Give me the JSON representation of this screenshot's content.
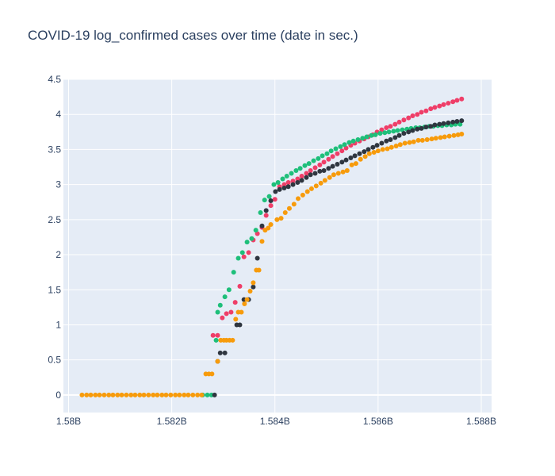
{
  "chart_data": {
    "type": "scatter",
    "title": "COVID-19 log_confirmed cases over time (date in sec.)",
    "xlabel": "",
    "ylabel": "",
    "xlim": [
      1579900000.0,
      1588200000.0
    ],
    "ylim": [
      -0.25,
      4.5
    ],
    "x_ticks": [
      1580000000.0,
      1582000000.0,
      1584000000.0,
      1586000000.0,
      1588000000.0
    ],
    "x_tick_labels": [
      "1.58B",
      "1.582B",
      "1.584B",
      "1.586B",
      "1.588B"
    ],
    "y_ticks": [
      0,
      0.5,
      1,
      1.5,
      2,
      2.5,
      3,
      3.5,
      4,
      4.5
    ],
    "y_tick_labels": [
      "0",
      "0.5",
      "1",
      "1.5",
      "2",
      "2.5",
      "3",
      "3.5",
      "4",
      "4.5"
    ],
    "grid": true,
    "legend": "none",
    "colors": {
      "plot_bg": "#e5ecf6",
      "grid": "#ffffff",
      "text": "#2a3f5f"
    },
    "series": [
      {
        "color": "#636efa",
        "x": [],
        "y": []
      },
      {
        "color": "#ef3e68",
        "x": [
          1582800000.0,
          1582890000.0,
          1582980000.0,
          1583060000.0,
          1583150000.0,
          1583230000.0,
          1583320000.0,
          1583400000.0,
          1583490000.0,
          1583580000.0,
          1583660000.0,
          1583750000.0,
          1583830000.0,
          1583920000.0,
          1584000000.0,
          1584090000.0,
          1584180000.0,
          1584260000.0,
          1584350000.0,
          1584440000.0,
          1584520000.0,
          1584610000.0,
          1584690000.0,
          1584780000.0,
          1584870000.0,
          1584950000.0,
          1585040000.0,
          1585120000.0,
          1585210000.0,
          1585300000.0,
          1585380000.0,
          1585470000.0,
          1585550000.0,
          1585640000.0,
          1585730000.0,
          1585810000.0,
          1585900000.0,
          1585980000.0,
          1586070000.0,
          1586160000.0,
          1586240000.0,
          1586330000.0,
          1586410000.0,
          1586500000.0,
          1586590000.0,
          1586670000.0,
          1586760000.0,
          1586840000.0,
          1586930000.0,
          1587020000.0,
          1587100000.0,
          1587190000.0,
          1587270000.0,
          1587360000.0,
          1587450000.0,
          1587530000.0,
          1587620000.0
        ],
        "y": [
          0.85,
          0.85,
          1.1,
          1.16,
          1.18,
          1.32,
          1.55,
          1.97,
          2.03,
          2.21,
          2.3,
          2.39,
          2.56,
          2.7,
          2.79,
          2.97,
          3.0,
          3.03,
          3.05,
          3.08,
          3.12,
          3.16,
          3.2,
          3.24,
          3.28,
          3.32,
          3.36,
          3.4,
          3.44,
          3.48,
          3.52,
          3.56,
          3.59,
          3.62,
          3.65,
          3.68,
          3.71,
          3.75,
          3.78,
          3.81,
          3.83,
          3.86,
          3.89,
          3.92,
          3.95,
          3.98,
          4.0,
          4.03,
          4.05,
          4.08,
          4.1,
          4.12,
          4.14,
          4.16,
          4.18,
          4.2,
          4.22
        ]
      },
      {
        "color": "#1ebf7a",
        "x": [
          1582600000.0,
          1582690000.0,
          1582770000.0,
          1582860000.0,
          1582890000.0,
          1582940000.0,
          1583030000.0,
          1583110000.0,
          1583200000.0,
          1583290000.0,
          1583370000.0,
          1583460000.0,
          1583550000.0,
          1583630000.0,
          1583720000.0,
          1583800000.0,
          1583890000.0,
          1583980000.0,
          1584060000.0,
          1584150000.0,
          1584230000.0,
          1584320000.0,
          1584410000.0,
          1584490000.0,
          1584580000.0,
          1584660000.0,
          1584750000.0,
          1584840000.0,
          1584920000.0,
          1585010000.0,
          1585090000.0,
          1585180000.0,
          1585270000.0,
          1585350000.0,
          1585440000.0,
          1585520000.0,
          1585610000.0,
          1585700000.0,
          1585780000.0,
          1585870000.0,
          1585950000.0,
          1586040000.0,
          1586130000.0,
          1586210000.0,
          1586300000.0,
          1586380000.0,
          1586470000.0,
          1586560000.0,
          1586640000.0,
          1586730000.0,
          1586810000.0,
          1586900000.0,
          1586990000.0,
          1587070000.0,
          1587160000.0,
          1587240000.0,
          1587330000.0,
          1587420000.0,
          1587500000.0,
          1587590000.0
        ],
        "y": [
          0.0,
          0.0,
          0.0,
          0.78,
          1.18,
          1.28,
          1.4,
          1.5,
          1.75,
          1.95,
          2.03,
          2.18,
          2.23,
          2.35,
          2.6,
          2.78,
          2.83,
          3.0,
          3.03,
          3.08,
          3.12,
          3.16,
          3.2,
          3.23,
          3.27,
          3.3,
          3.34,
          3.37,
          3.41,
          3.44,
          3.48,
          3.51,
          3.54,
          3.57,
          3.6,
          3.62,
          3.64,
          3.66,
          3.68,
          3.7,
          3.71,
          3.73,
          3.74,
          3.75,
          3.76,
          3.77,
          3.78,
          3.79,
          3.8,
          3.81,
          3.81,
          3.82,
          3.83,
          3.83,
          3.84,
          3.84,
          3.85,
          3.85,
          3.86,
          3.86
        ]
      },
      {
        "color": "#2f3640",
        "x": [
          1582830000.0,
          1582890000.0,
          1582940000.0,
          1583030000.0,
          1583260000.0,
          1583320000.0,
          1583400000.0,
          1583490000.0,
          1583580000.0,
          1583660000.0,
          1583750000.0,
          1583830000.0,
          1583920000.0,
          1584010000.0,
          1584090000.0,
          1584180000.0,
          1584260000.0,
          1584350000.0,
          1584440000.0,
          1584520000.0,
          1584610000.0,
          1584690000.0,
          1584780000.0,
          1584870000.0,
          1584950000.0,
          1585040000.0,
          1585120000.0,
          1585210000.0,
          1585300000.0,
          1585380000.0,
          1585470000.0,
          1585550000.0,
          1585640000.0,
          1585730000.0,
          1585810000.0,
          1585900000.0,
          1585980000.0,
          1586070000.0,
          1586160000.0,
          1586240000.0,
          1586330000.0,
          1586410000.0,
          1586500000.0,
          1586590000.0,
          1586670000.0,
          1586760000.0,
          1586840000.0,
          1586930000.0,
          1587020000.0,
          1587100000.0,
          1587190000.0,
          1587270000.0,
          1587360000.0,
          1587450000.0,
          1587530000.0,
          1587620000.0
        ],
        "y": [
          0.0,
          0.48,
          0.6,
          0.6,
          1.0,
          1.0,
          1.36,
          1.36,
          1.54,
          1.95,
          2.41,
          2.63,
          2.77,
          2.9,
          2.93,
          2.95,
          2.97,
          3.0,
          3.03,
          3.06,
          3.1,
          3.14,
          3.16,
          3.19,
          3.2,
          3.23,
          3.26,
          3.29,
          3.32,
          3.35,
          3.38,
          3.41,
          3.44,
          3.47,
          3.5,
          3.53,
          3.56,
          3.59,
          3.62,
          3.64,
          3.67,
          3.7,
          3.73,
          3.75,
          3.77,
          3.79,
          3.8,
          3.82,
          3.83,
          3.85,
          3.86,
          3.87,
          3.88,
          3.89,
          3.9,
          3.91
        ]
      },
      {
        "color": "#f79b0b",
        "x": [
          1580260000.0,
          1580350000.0,
          1580430000.0,
          1580520000.0,
          1580600000.0,
          1580690000.0,
          1580780000.0,
          1580860000.0,
          1580950000.0,
          1581030000.0,
          1581120000.0,
          1581210000.0,
          1581290000.0,
          1581380000.0,
          1581460000.0,
          1581550000.0,
          1581640000.0,
          1581720000.0,
          1581810000.0,
          1581890000.0,
          1581980000.0,
          1582070000.0,
          1582150000.0,
          1582240000.0,
          1582320000.0,
          1582410000.0,
          1582500000.0,
          1582580000.0,
          1582660000.0,
          1582720000.0,
          1582780000.0,
          1582890000.0,
          1582950000.0,
          1583010000.0,
          1583060000.0,
          1583120000.0,
          1583180000.0,
          1583240000.0,
          1583290000.0,
          1583350000.0,
          1583410000.0,
          1583460000.0,
          1583520000.0,
          1583580000.0,
          1583640000.0,
          1583690000.0,
          1583750000.0,
          1583810000.0,
          1583870000.0,
          1583920000.0,
          1584040000.0,
          1584120000.0,
          1584200000.0,
          1584280000.0,
          1584370000.0,
          1584450000.0,
          1584540000.0,
          1584630000.0,
          1584710000.0,
          1584800000.0,
          1584890000.0,
          1584970000.0,
          1585060000.0,
          1585140000.0,
          1585230000.0,
          1585320000.0,
          1585400000.0,
          1585490000.0,
          1585570000.0,
          1585660000.0,
          1585750000.0,
          1585830000.0,
          1585920000.0,
          1586000000.0,
          1586090000.0,
          1586180000.0,
          1586260000.0,
          1586350000.0,
          1586430000.0,
          1586520000.0,
          1586610000.0,
          1586690000.0,
          1586780000.0,
          1586860000.0,
          1586950000.0,
          1587040000.0,
          1587120000.0,
          1587210000.0,
          1587290000.0,
          1587380000.0,
          1587470000.0,
          1587550000.0,
          1587620000.0
        ],
        "y": [
          0,
          0,
          0,
          0,
          0,
          0,
          0,
          0,
          0,
          0,
          0,
          0,
          0,
          0,
          0,
          0,
          0,
          0,
          0,
          0,
          0,
          0,
          0,
          0,
          0,
          0,
          0,
          0,
          0.3,
          0.3,
          0.3,
          0.48,
          0.78,
          0.78,
          0.78,
          0.78,
          0.78,
          1.08,
          1.18,
          1.18,
          1.3,
          1.36,
          1.48,
          1.6,
          1.78,
          1.78,
          2.19,
          2.35,
          2.38,
          2.43,
          2.5,
          2.52,
          2.6,
          2.66,
          2.72,
          2.8,
          2.85,
          2.9,
          2.94,
          2.98,
          3.02,
          3.06,
          3.1,
          3.14,
          3.16,
          3.18,
          3.2,
          3.28,
          3.3,
          3.36,
          3.4,
          3.44,
          3.46,
          3.48,
          3.5,
          3.51,
          3.53,
          3.55,
          3.57,
          3.59,
          3.6,
          3.61,
          3.63,
          3.63,
          3.64,
          3.65,
          3.66,
          3.67,
          3.68,
          3.69,
          3.7,
          3.71,
          3.72
        ]
      }
    ]
  }
}
